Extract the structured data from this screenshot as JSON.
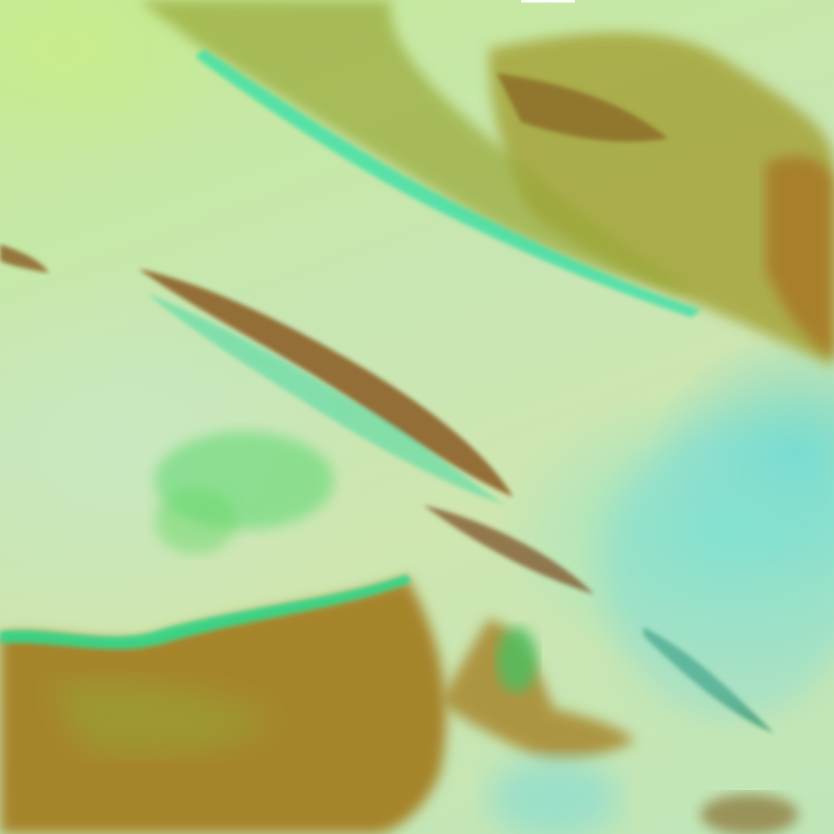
{
  "image": {
    "description_colors": {
      "cloud_light": "#cde8b4",
      "cloud_green": "#9ee87c",
      "cyan_edge": "#4ee8b0",
      "land_brown": "#a8802a",
      "land_olive": "#9aa030",
      "ocean_cyan": "#6fd8d8"
    }
  }
}
